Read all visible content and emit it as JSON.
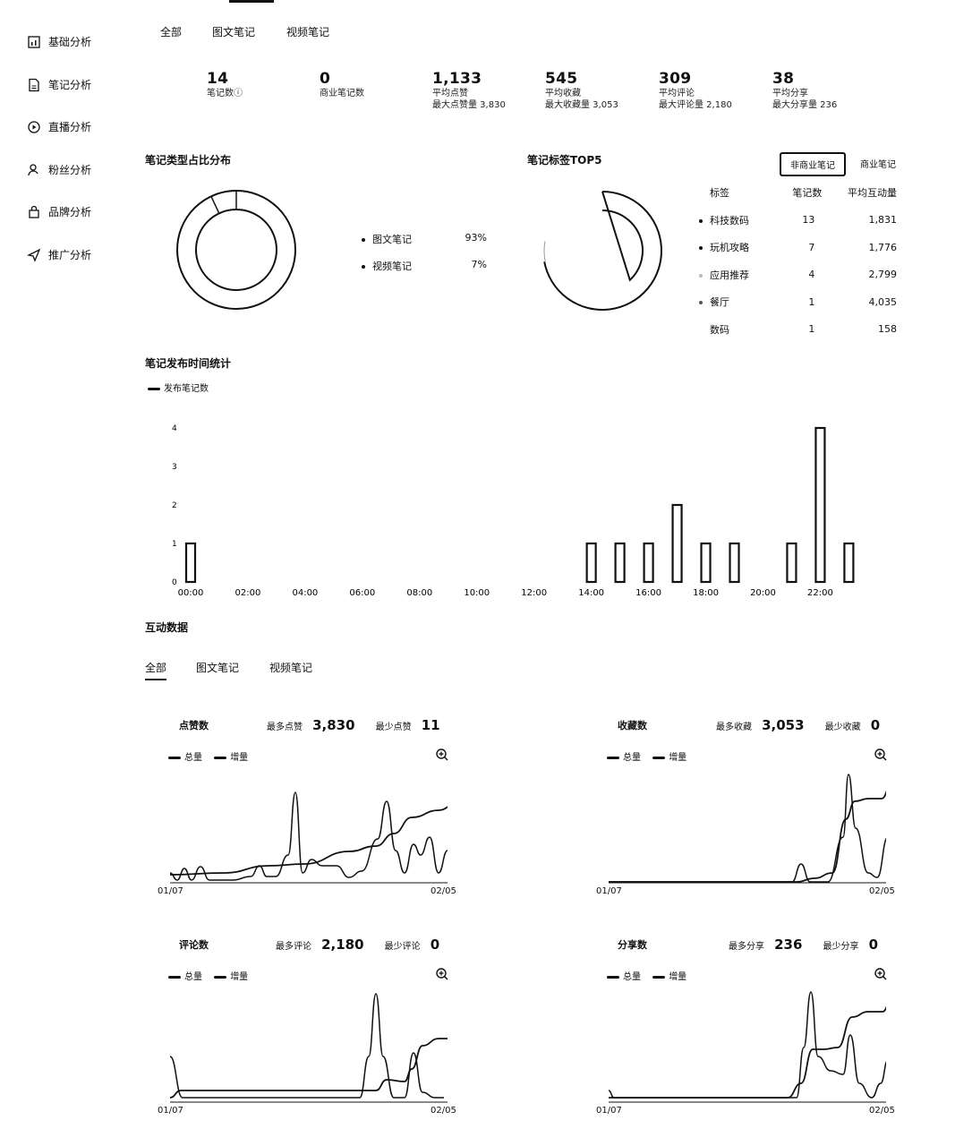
{
  "sidebar": {
    "items": [
      {
        "label": "基础分析",
        "icon": "bar-chart-icon"
      },
      {
        "label": "笔记分析",
        "icon": "document-icon"
      },
      {
        "label": "直播分析",
        "icon": "play-circle-icon"
      },
      {
        "label": "粉丝分析",
        "icon": "user-icon"
      },
      {
        "label": "品牌分析",
        "icon": "bag-icon"
      },
      {
        "label": "推广分析",
        "icon": "send-icon"
      }
    ]
  },
  "top_tabs": [
    "全部",
    "图文笔记",
    "视频笔记"
  ],
  "stats": [
    {
      "value": "14",
      "label": "笔记数ⓘ",
      "sub": ""
    },
    {
      "value": "0",
      "label": "商业笔记数",
      "sub": ""
    },
    {
      "value": "1,133",
      "label": "平均点赞",
      "sub": "最大点赞量 3,830"
    },
    {
      "value": "545",
      "label": "平均收藏",
      "sub": "最大收藏量 3,053"
    },
    {
      "value": "309",
      "label": "平均评论",
      "sub": "最大评论量 2,180"
    },
    {
      "value": "38",
      "label": "平均分享",
      "sub": "最大分享量 236"
    }
  ],
  "type_dist": {
    "title": "笔记类型占比分布",
    "items": [
      {
        "name": "图文笔记",
        "pct": "93%",
        "value": 93
      },
      {
        "name": "视频笔记",
        "pct": "7%",
        "value": 7
      }
    ]
  },
  "tags": {
    "title": "笔记标签TOP5",
    "buttons": [
      "非商业笔记",
      "商业笔记"
    ],
    "headers": [
      "标签",
      "笔记数",
      "平均互动量"
    ],
    "rows": [
      {
        "tag": "科技数码",
        "count": 13,
        "count_text": "13",
        "avg": "1,831"
      },
      {
        "tag": "玩机攻略",
        "count": 7,
        "count_text": "7",
        "avg": "1,776"
      },
      {
        "tag": "应用推荐",
        "count": 4,
        "count_text": "4",
        "avg": "2,799"
      },
      {
        "tag": "餐厅",
        "count": 1,
        "count_text": "1",
        "avg": "4,035"
      },
      {
        "tag": "数码",
        "count": 1,
        "count_text": "1",
        "avg": "158"
      }
    ]
  },
  "publish_time": {
    "title": "笔记发布时间统计",
    "legend": "发布笔记数",
    "chart_data": {
      "type": "bar",
      "x_ticks": [
        "00:00",
        "02:00",
        "04:00",
        "06:00",
        "08:00",
        "10:00",
        "12:00",
        "14:00",
        "16:00",
        "18:00",
        "20:00",
        "22:00"
      ],
      "y_ticks": [
        "0",
        "1",
        "2",
        "3",
        "4"
      ],
      "ylim": [
        0,
        4
      ],
      "hours": [
        0,
        14,
        15,
        16,
        17,
        18,
        19,
        21,
        22,
        23
      ],
      "values": [
        1,
        1,
        1,
        1,
        2,
        1,
        1,
        1,
        4,
        1
      ]
    }
  },
  "interaction": {
    "title": "互动数据",
    "tabs": [
      "全部",
      "图文笔记",
      "视频笔记"
    ],
    "panels": [
      {
        "name": "点赞数",
        "max_label": "最多点赞",
        "max": "3,830",
        "min_label": "最少点赞",
        "min": "11",
        "legend": [
          "总量",
          "增量"
        ],
        "x_start": "01/07",
        "x_end": "02/05"
      },
      {
        "name": "收藏数",
        "max_label": "最多收藏",
        "max": "3,053",
        "min_label": "最少收藏",
        "min": "0",
        "legend": [
          "总量",
          "增量"
        ],
        "x_start": "01/07",
        "x_end": "02/05"
      },
      {
        "name": "评论数",
        "max_label": "最多评论",
        "max": "2,180",
        "min_label": "最少评论",
        "min": "0",
        "legend": [
          "总量",
          "增量"
        ],
        "x_start": "01/07",
        "x_end": "02/05"
      },
      {
        "name": "分享数",
        "max_label": "最多分享",
        "max": "236",
        "min_label": "最少分享",
        "min": "0",
        "legend": [
          "总量",
          "增量"
        ],
        "x_start": "01/07",
        "x_end": "02/05"
      }
    ]
  }
}
